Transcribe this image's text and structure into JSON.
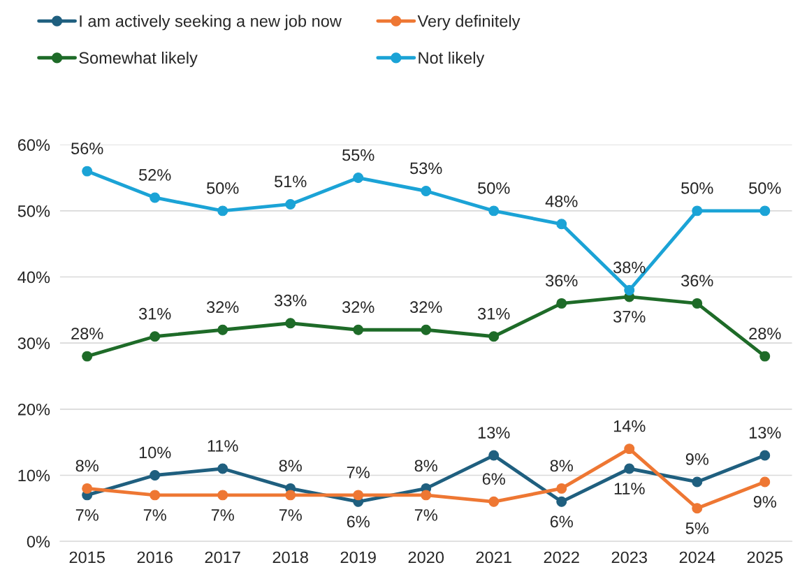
{
  "chart_data": {
    "type": "line",
    "categories": [
      "2015",
      "2016",
      "2017",
      "2018",
      "2019",
      "2020",
      "2021",
      "2022",
      "2023",
      "2024",
      "2025"
    ],
    "series": [
      {
        "name": "I am actively seeking a new job now",
        "color": "#1f5f7f",
        "values": [
          7,
          10,
          11,
          8,
          6,
          8,
          13,
          6,
          11,
          9,
          13
        ],
        "value_labels": [
          "7%",
          "10%",
          "11%",
          "8%",
          "6%",
          "8%",
          "13%",
          "6%",
          "11%",
          "9%",
          "13%"
        ]
      },
      {
        "name": "Very definitely",
        "color": "#ee7733",
        "values": [
          8,
          7,
          7,
          7,
          7,
          7,
          6,
          8,
          14,
          5,
          9
        ],
        "value_labels": [
          "8%",
          "7%",
          "7%",
          "7%",
          "7%",
          "7%",
          "6%",
          "8%",
          "14%",
          "5%",
          "9%"
        ]
      },
      {
        "name": "Somewhat likely",
        "color": "#1e6b28",
        "values": [
          28,
          31,
          32,
          33,
          32,
          32,
          31,
          36,
          37,
          36,
          28
        ],
        "value_labels": [
          "28%",
          "31%",
          "32%",
          "33%",
          "32%",
          "32%",
          "31%",
          "36%",
          "37%",
          "36%",
          "28%"
        ]
      },
      {
        "name": "Not likely",
        "color": "#1ba3d6",
        "values": [
          56,
          52,
          50,
          51,
          55,
          53,
          50,
          48,
          38,
          50,
          50
        ],
        "value_labels": [
          "56%",
          "52%",
          "50%",
          "51%",
          "55%",
          "53%",
          "50%",
          "48%",
          "38%",
          "50%",
          "50%"
        ]
      }
    ],
    "ylim": [
      0,
      60
    ],
    "yticks": [
      {
        "value": 0,
        "label": "0%"
      },
      {
        "value": 10,
        "label": "10%"
      },
      {
        "value": 20,
        "label": "20%"
      },
      {
        "value": 30,
        "label": "30%"
      },
      {
        "value": 40,
        "label": "40%"
      },
      {
        "value": 50,
        "label": "50%"
      },
      {
        "value": 60,
        "label": "60%"
      }
    ],
    "grid": "y",
    "legend": "top",
    "marker": "circle",
    "line_style": "solid"
  }
}
